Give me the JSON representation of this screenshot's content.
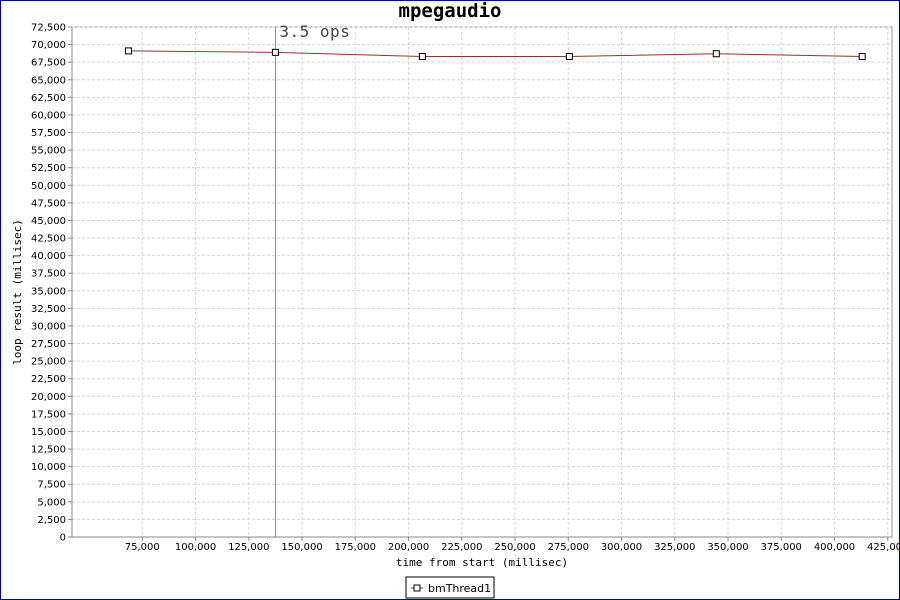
{
  "chart_data": {
    "type": "line",
    "title": "mpegaudio",
    "xlabel": "time from start (millisec)",
    "ylabel": "loop result (millisec)",
    "xlim": [
      42000,
      427000
    ],
    "ylim": [
      0,
      72500
    ],
    "x_ticks": [
      75000,
      100000,
      125000,
      150000,
      175000,
      200000,
      225000,
      250000,
      275000,
      300000,
      325000,
      350000,
      375000,
      400000,
      425000
    ],
    "x_tick_labels": [
      "75,000",
      "100,000",
      "125,000",
      "150,000",
      "175,000",
      "200,000",
      "225,000",
      "250,000",
      "275,000",
      "300,000",
      "325,000",
      "350,000",
      "375,000",
      "400,000",
      "425,000"
    ],
    "y_ticks": [
      0,
      2500,
      5000,
      7500,
      10000,
      12500,
      15000,
      17500,
      20000,
      22500,
      25000,
      27500,
      30000,
      32500,
      35000,
      37500,
      40000,
      42500,
      45000,
      47500,
      50000,
      52500,
      55000,
      57500,
      60000,
      62500,
      65000,
      67500,
      70000,
      72500
    ],
    "y_tick_labels": [
      "0",
      "2,500",
      "5,000",
      "7,500",
      "10,000",
      "12,500",
      "15,000",
      "17,500",
      "20,000",
      "22,500",
      "25,000",
      "27,500",
      "30,000",
      "32,500",
      "35,000",
      "37,500",
      "40,000",
      "42,500",
      "45,000",
      "47,500",
      "50,000",
      "52,500",
      "55,000",
      "57,500",
      "60,000",
      "62,500",
      "65,000",
      "67,500",
      "70,000",
      "72,500"
    ],
    "grid": true,
    "legend_position": "bottom-center",
    "series": [
      {
        "name": "bmThread1",
        "color": "#8b3a2a",
        "marker": "square",
        "x": [
          68500,
          137500,
          206500,
          275500,
          344500,
          413000
        ],
        "y": [
          69100,
          68900,
          68300,
          68300,
          68700,
          68300
        ]
      }
    ],
    "annotations": [
      {
        "x": 137500,
        "text": "3.5 ops",
        "type": "vertical-line"
      }
    ]
  }
}
